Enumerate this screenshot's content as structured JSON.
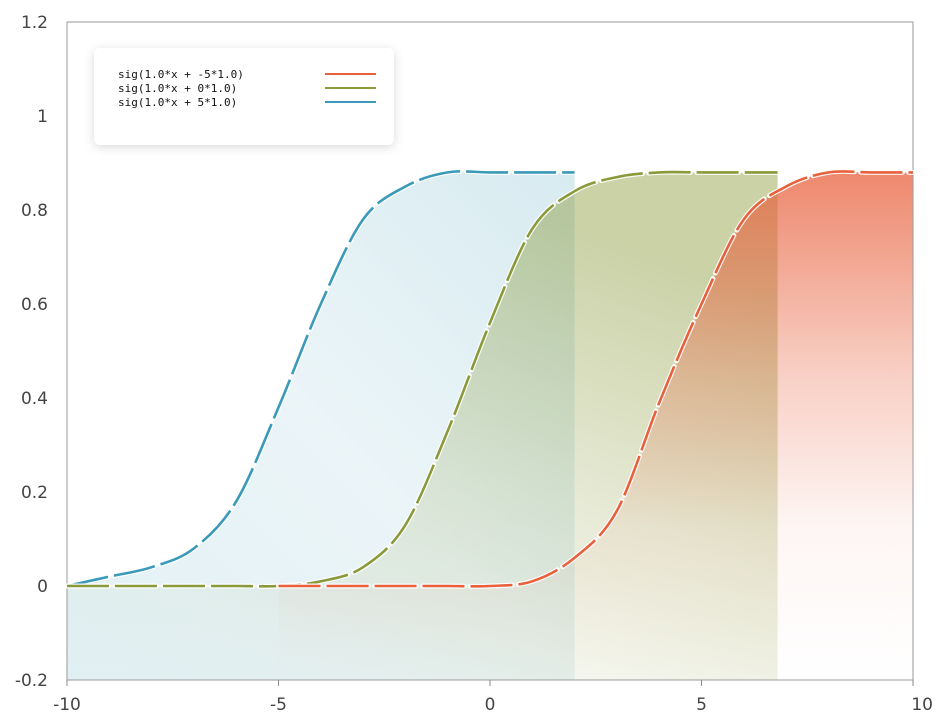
{
  "chart_data": {
    "type": "line",
    "title": "",
    "xlabel": "",
    "ylabel": "",
    "xlim": [
      -10,
      10
    ],
    "ylim": [
      -0.2,
      1.2
    ],
    "x_ticks": [
      -10,
      -5,
      0,
      5,
      10
    ],
    "x_tick_labels": [
      "-10",
      "-5",
      "0",
      "5",
      "10"
    ],
    "y_ticks": [
      -0.2,
      0,
      0.2,
      0.4,
      0.6,
      0.8,
      1,
      1.2
    ],
    "y_tick_labels": [
      "-0.2",
      "0",
      "0.2",
      "0.4",
      "0.6",
      "0.8",
      "1",
      "1.2"
    ],
    "grid": false,
    "legend_position": "top-left",
    "series": [
      {
        "name": "sig(1.0*x + -5*1.0)",
        "color": "#e8603c",
        "x": [
          -5,
          -3,
          -2,
          -1,
          0,
          1,
          2,
          3,
          4,
          5,
          6,
          7,
          8,
          9,
          10
        ],
        "y": [
          0,
          0,
          0,
          0,
          0,
          0.01,
          0.06,
          0.16,
          0.39,
          0.6,
          0.78,
          0.85,
          0.88,
          0.88,
          0.88
        ]
      },
      {
        "name": "sig(1.0*x +  0*1.0)",
        "color": "#8a9a3a",
        "x": [
          -10,
          -8,
          -6,
          -5,
          -4,
          -3,
          -2,
          -1,
          0,
          1,
          2,
          3,
          4,
          5,
          6.8
        ],
        "y": [
          0,
          0,
          0,
          0,
          0.01,
          0.04,
          0.13,
          0.33,
          0.56,
          0.76,
          0.84,
          0.87,
          0.88,
          0.88,
          0.88
        ]
      },
      {
        "name": "sig(1.0*x +  5*1.0)",
        "color": "#3a9ab8",
        "x": [
          -10,
          -9,
          -8,
          -7,
          -6,
          -5,
          -4,
          -3,
          -2,
          -1,
          0,
          1,
          2
        ],
        "y": [
          0,
          0.02,
          0.04,
          0.08,
          0.18,
          0.38,
          0.6,
          0.78,
          0.85,
          0.88,
          0.88,
          0.88,
          0.88
        ]
      }
    ]
  }
}
